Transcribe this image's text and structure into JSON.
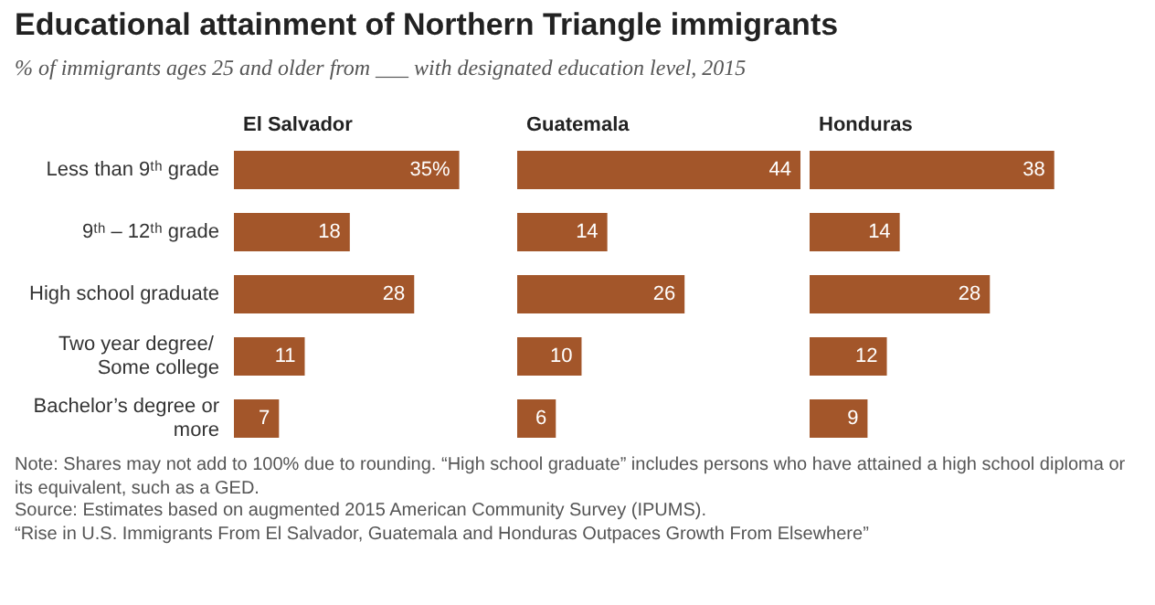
{
  "chart_data": [
    {
      "type": "other",
      "title": "Educational attainment of Northern Triangle immigrants",
      "subtitle": "% of immigrants ages 25 and older from ___ with designated education level, 2015",
      "annotations": [
        "Note: Shares may not add to 100% due to rounding. “High school graduate” includes persons who have attained a high school diploma or its equivalent, such as a GED.",
        "Source: Estimates based on augmented 2015 American Community Survey (IPUMS).",
        "“Rise in U.S. Immigrants From El Salvador, Guatemala and Honduras Outpaces Growth From Elsewhere”"
      ]
    },
    {
      "type": "bar",
      "orientation": "horizontal",
      "title": "El Salvador",
      "categories": [
        "Less than 9ᵗʰ grade",
        "9ᵗʰ – 12ᵗʰ grade",
        "High school graduate",
        "Two year degree/ Some college",
        "Bachelor’s degree or more"
      ],
      "values": [
        35,
        18,
        28,
        11,
        7
      ],
      "value_labels": [
        "35%",
        "18",
        "28",
        "11",
        "7"
      ],
      "color": "#a3562a",
      "tick_labels": "y"
    },
    {
      "type": "bar",
      "orientation": "horizontal",
      "title": "Guatemala",
      "categories": [
        "Less than 9ᵗʰ grade",
        "9ᵗʰ – 12ᵗʰ grade",
        "High school graduate",
        "Two year degree/ Some college",
        "Bachelor’s degree or more"
      ],
      "values": [
        44,
        14,
        26,
        10,
        6
      ],
      "data_labels": true,
      "color": "#a3562a",
      "tick_labels": false
    },
    {
      "type": "bar",
      "orientation": "horizontal",
      "title": "Honduras",
      "categories": [
        "Less than 9ᵗʰ grade",
        "9ᵗʰ – 12ᵗʰ grade",
        "High school graduate",
        "Two year degree/ Some college",
        "Bachelor’s degree or more"
      ],
      "values": [
        38,
        14,
        28,
        12,
        9
      ],
      "data_labels": true,
      "color": "#a3562a",
      "tick_labels": false
    }
  ]
}
